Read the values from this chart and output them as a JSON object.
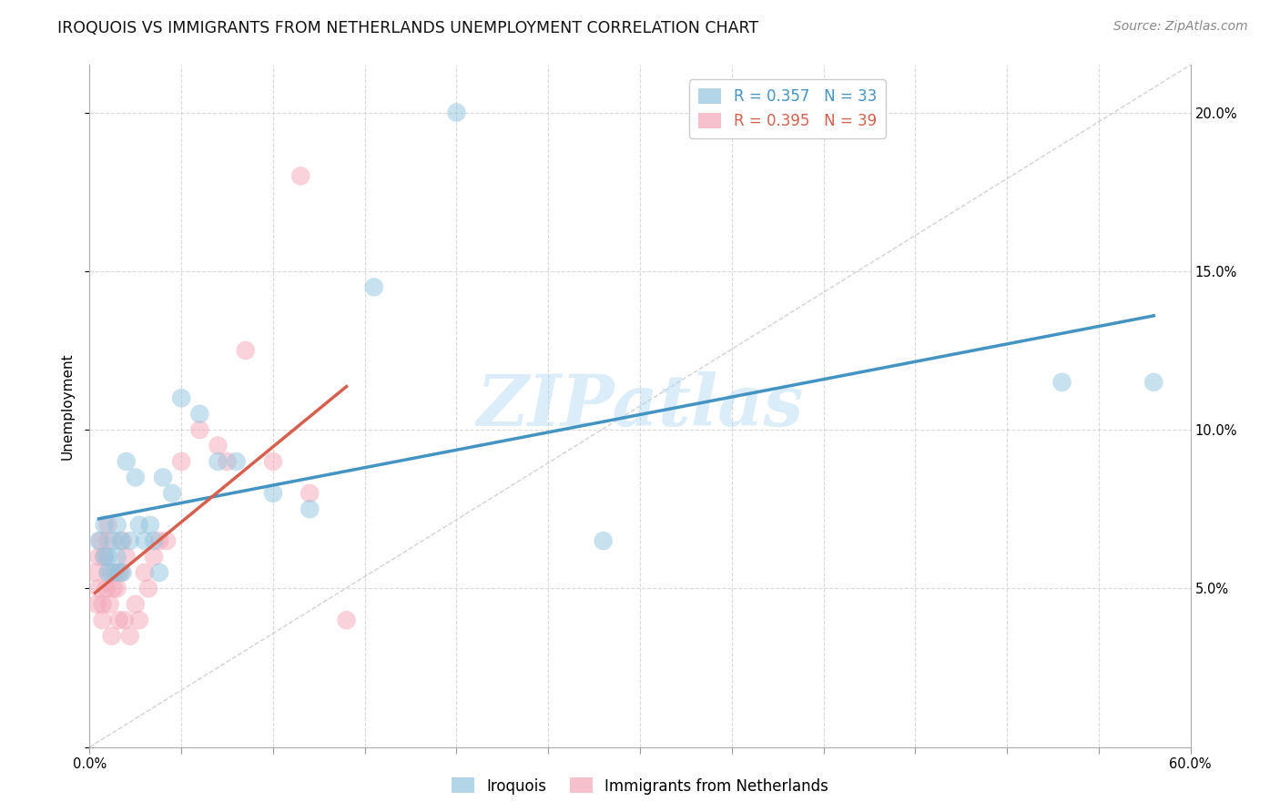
{
  "title": "IROQUOIS VS IMMIGRANTS FROM NETHERLANDS UNEMPLOYMENT CORRELATION CHART",
  "source": "Source: ZipAtlas.com",
  "ylabel": "Unemployment",
  "xlim": [
    0.0,
    0.6
  ],
  "ylim": [
    0.0,
    0.215
  ],
  "legend1_label": "R = 0.357   N = 33",
  "legend2_label": "R = 0.395   N = 39",
  "series1_label": "Iroquois",
  "series2_label": "Immigrants from Netherlands",
  "watermark": "ZIPatlas",
  "blue_color": "#92c5de",
  "pink_color": "#f4a6b8",
  "blue_line_color": "#4393c3",
  "pink_line_color": "#d6604d",
  "right_yticks": [
    0.05,
    0.1,
    0.15,
    0.2
  ],
  "right_yticklabels": [
    "5.0%",
    "10.0%",
    "15.0%",
    "20.0%"
  ],
  "iroquois_x": [
    0.005,
    0.008,
    0.008,
    0.01,
    0.01,
    0.012,
    0.013,
    0.015,
    0.015,
    0.016,
    0.017,
    0.018,
    0.02,
    0.022,
    0.025,
    0.027,
    0.03,
    0.033,
    0.035,
    0.038,
    0.04,
    0.045,
    0.05,
    0.06,
    0.07,
    0.08,
    0.1,
    0.12,
    0.155,
    0.2,
    0.28,
    0.53,
    0.58
  ],
  "iroquois_y": [
    0.065,
    0.06,
    0.07,
    0.055,
    0.06,
    0.055,
    0.065,
    0.07,
    0.06,
    0.055,
    0.065,
    0.055,
    0.09,
    0.065,
    0.085,
    0.07,
    0.065,
    0.07,
    0.065,
    0.055,
    0.085,
    0.08,
    0.11,
    0.105,
    0.09,
    0.09,
    0.08,
    0.075,
    0.145,
    0.2,
    0.065,
    0.115,
    0.115
  ],
  "netherlands_x": [
    0.003,
    0.004,
    0.005,
    0.005,
    0.006,
    0.007,
    0.007,
    0.008,
    0.009,
    0.01,
    0.01,
    0.01,
    0.011,
    0.012,
    0.013,
    0.014,
    0.015,
    0.016,
    0.017,
    0.018,
    0.019,
    0.02,
    0.022,
    0.025,
    0.027,
    0.03,
    0.032,
    0.035,
    0.038,
    0.042,
    0.05,
    0.06,
    0.07,
    0.075,
    0.085,
    0.1,
    0.115,
    0.12,
    0.14
  ],
  "netherlands_y": [
    0.055,
    0.045,
    0.05,
    0.06,
    0.065,
    0.04,
    0.045,
    0.06,
    0.05,
    0.055,
    0.065,
    0.07,
    0.045,
    0.035,
    0.05,
    0.055,
    0.05,
    0.04,
    0.055,
    0.065,
    0.04,
    0.06,
    0.035,
    0.045,
    0.04,
    0.055,
    0.05,
    0.06,
    0.065,
    0.065,
    0.09,
    0.1,
    0.095,
    0.09,
    0.125,
    0.09,
    0.18,
    0.08,
    0.04
  ]
}
